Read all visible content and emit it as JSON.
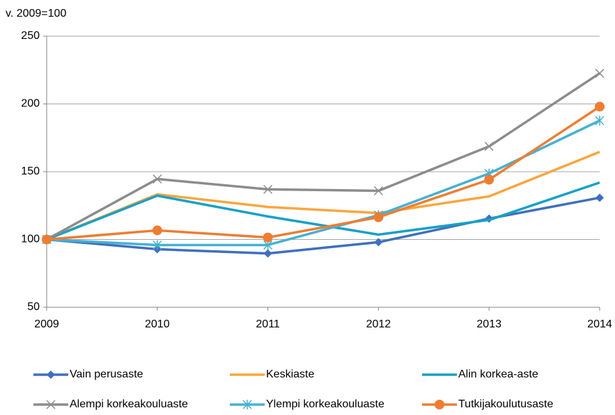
{
  "chart_data": {
    "type": "line",
    "y_label": "v. 2009=100",
    "x": [
      2009,
      2010,
      2011,
      2012,
      2013,
      2014
    ],
    "xlim": [
      2009,
      2014
    ],
    "xticks": [
      2009,
      2010,
      2011,
      2012,
      2013,
      2014
    ],
    "ylim": [
      50,
      250
    ],
    "yticks": [
      50,
      100,
      150,
      200,
      250
    ],
    "grid": true,
    "series": [
      {
        "name": "Vain perusaste",
        "color": "#3f6fbf",
        "marker": "diamond",
        "values": [
          100,
          92.8,
          89.7,
          98,
          115.4,
          130.8
        ]
      },
      {
        "name": "Keskiaste",
        "color": "#f9a63c",
        "values": [
          100,
          133.3,
          124,
          119.5,
          131.8,
          164.6
        ]
      },
      {
        "name": "Alin korkea-aste",
        "color": "#17a1c6",
        "values": [
          100,
          132.3,
          117,
          103.6,
          114.4,
          142
        ]
      },
      {
        "name": "Alempi korkeakouluaste",
        "color": "#8c8c8c",
        "marker": "x",
        "values": [
          100,
          144.6,
          137,
          135.9,
          168.7,
          222.6
        ]
      },
      {
        "name": "Ylempi korkeakouluaste",
        "color": "#45b1d3",
        "marker": "asterisk",
        "values": [
          100,
          95.9,
          95.9,
          118,
          148.7,
          187.7
        ]
      },
      {
        "name": "Tutkijakoulutusaste",
        "color": "#ee7d32",
        "marker": "circle",
        "values": [
          100,
          106.7,
          101.5,
          116.4,
          144.1,
          198
        ]
      }
    ]
  }
}
